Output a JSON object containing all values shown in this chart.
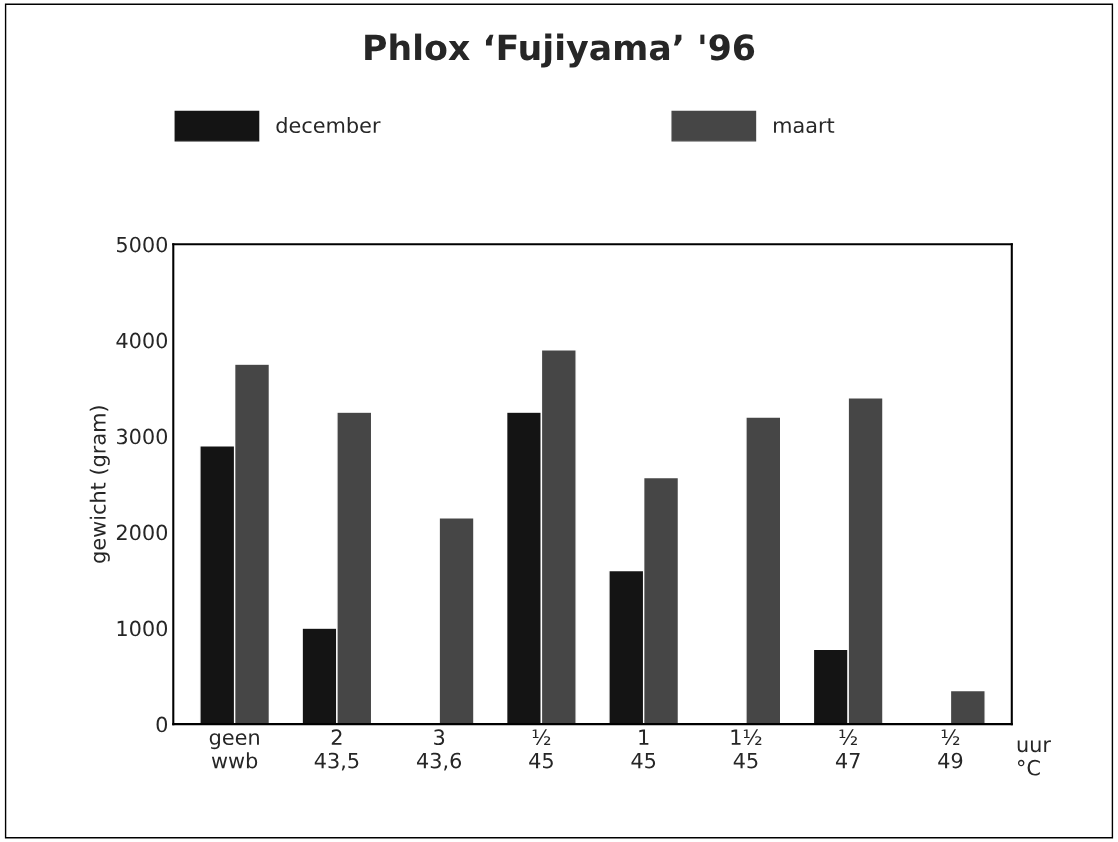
{
  "chart_data": {
    "type": "bar",
    "title": "Phlox ‘Fujiyama’ '96",
    "ylabel": "gewicht (gram)",
    "categories": [
      "geen\nwwb",
      "2\n43,5",
      "3\n43,6",
      "½\n45",
      "1\n45",
      "1½\n45",
      "½\n47",
      "½\n49"
    ],
    "series": [
      {
        "name": "december",
        "color": "#141414",
        "values": [
          2900,
          1000,
          null,
          3250,
          1600,
          null,
          780,
          null
        ]
      },
      {
        "name": "maart",
        "color": "#464646",
        "values": [
          3750,
          3250,
          2150,
          3900,
          2570,
          3200,
          3400,
          350
        ]
      }
    ],
    "ylim": [
      0,
      5000
    ],
    "yticks": [
      0,
      1000,
      2000,
      3000,
      4000,
      5000
    ],
    "grid": false,
    "legend": "top",
    "annotations": [
      "uur\n°C"
    ]
  }
}
